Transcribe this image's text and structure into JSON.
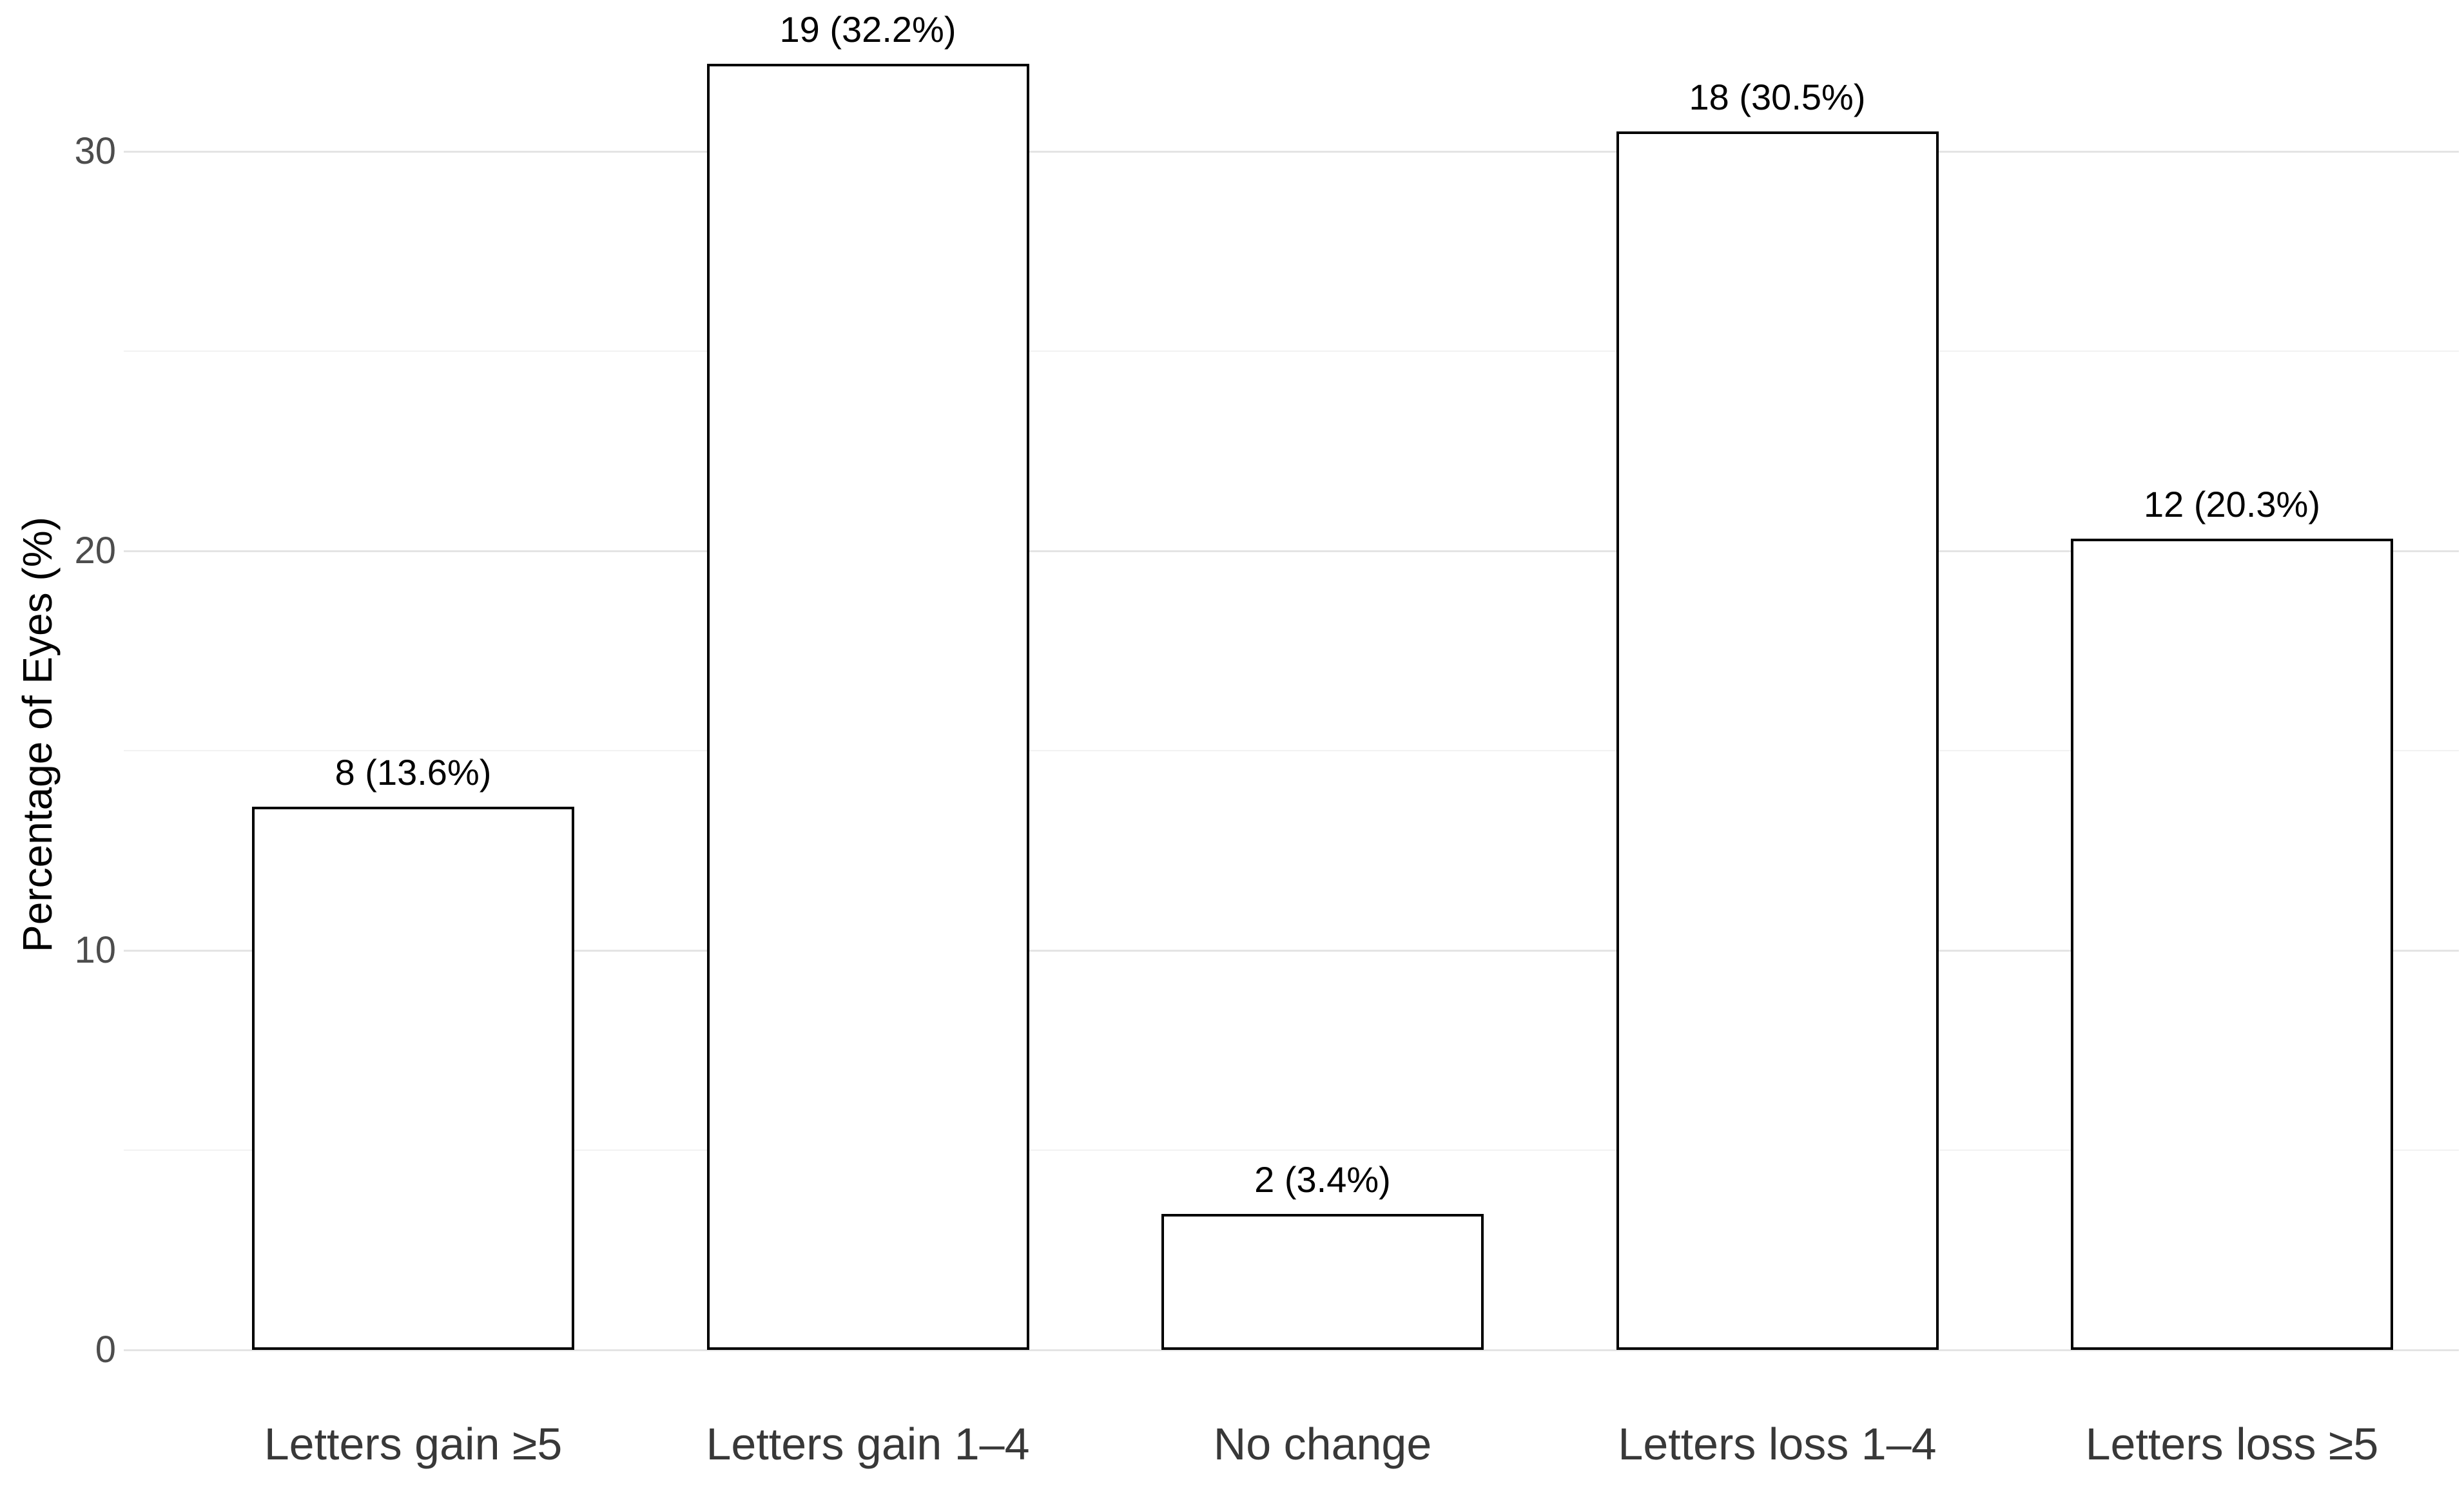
{
  "chart_data": {
    "type": "bar",
    "categories": [
      "Letters gain ≥5",
      "Letters gain 1–4",
      "No change",
      "Letters loss 1–4",
      "Letters loss ≥5"
    ],
    "counts": [
      8,
      19,
      2,
      18,
      12
    ],
    "values": [
      13.6,
      32.2,
      3.4,
      30.5,
      20.3
    ],
    "bar_labels": [
      "8 (13.6%)",
      "19 (32.2%)",
      "2 (3.4%)",
      "18 (30.5%)",
      "12 (20.3%)"
    ],
    "ylabel": "Percentage of Eyes (%)",
    "xlabel": "",
    "ylim": [
      0,
      33.8
    ],
    "yticks": [
      0,
      10,
      20,
      30
    ],
    "minor_gridlines": [
      5,
      15,
      25
    ],
    "grid": true,
    "legend_position": "none",
    "bar_fill": "#ffffff",
    "bar_border": "#000000",
    "colors": {
      "background": "#ffffff",
      "grid_major": "#e4e4e4",
      "grid_minor": "#f2f2f2",
      "tick_label": "#4d4d4d",
      "category_label": "#383838",
      "value_label": "#000000",
      "axis_title": "#000000"
    }
  }
}
